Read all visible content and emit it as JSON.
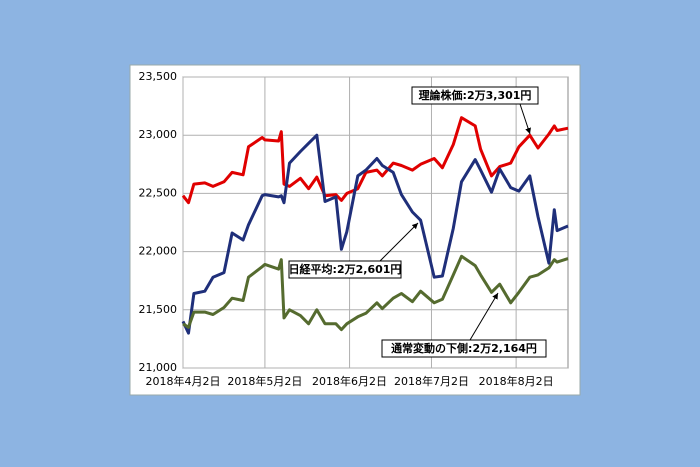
{
  "chart_data": {
    "type": "line",
    "x": [
      "2018-04-02",
      "2018-04-04",
      "2018-04-06",
      "2018-04-10",
      "2018-04-13",
      "2018-04-17",
      "2018-04-20",
      "2018-04-24",
      "2018-04-26",
      "2018-05-01",
      "2018-05-02",
      "2018-05-07",
      "2018-05-08",
      "2018-05-09",
      "2018-05-11",
      "2018-05-15",
      "2018-05-18",
      "2018-05-21",
      "2018-05-24",
      "2018-05-28",
      "2018-05-30",
      "2018-06-01",
      "2018-06-05",
      "2018-06-08",
      "2018-06-12",
      "2018-06-14",
      "2018-06-18",
      "2018-06-21",
      "2018-06-25",
      "2018-06-28",
      "2018-07-03",
      "2018-07-06",
      "2018-07-10",
      "2018-07-13",
      "2018-07-18",
      "2018-07-20",
      "2018-07-24",
      "2018-07-27",
      "2018-07-31",
      "2018-08-03",
      "2018-08-07",
      "2018-08-10",
      "2018-08-14",
      "2018-08-16",
      "2018-08-17",
      "2018-08-21"
    ],
    "series": [
      {
        "color": "#e00000",
        "values": [
          22480,
          22420,
          22580,
          22590,
          22560,
          22600,
          22680,
          22660,
          22900,
          22980,
          22960,
          22950,
          23030,
          22580,
          22560,
          22630,
          22540,
          22640,
          22480,
          22490,
          22440,
          22500,
          22540,
          22680,
          22700,
          22650,
          22760,
          22740,
          22700,
          22750,
          22800,
          22720,
          22920,
          23150,
          23080,
          22880,
          22650,
          22730,
          22760,
          22900,
          23000,
          22890,
          23010,
          23080,
          23040,
          23060
        ]
      },
      {
        "color": "#1f2f7a",
        "values": [
          21400,
          21300,
          21640,
          21660,
          21780,
          21820,
          22160,
          22100,
          22230,
          22480,
          22490,
          22470,
          22480,
          22420,
          22760,
          22860,
          22930,
          23000,
          22430,
          22470,
          22020,
          22170,
          22650,
          22700,
          22800,
          22740,
          22680,
          22490,
          22340,
          22270,
          21780,
          21790,
          22200,
          22600,
          22790,
          22700,
          22510,
          22710,
          22550,
          22520,
          22650,
          22300,
          21900,
          22360,
          22180,
          22220
        ]
      },
      {
        "color": "#556b2f",
        "values": [
          21380,
          21350,
          21480,
          21480,
          21460,
          21520,
          21600,
          21580,
          21780,
          21870,
          21890,
          21850,
          21930,
          21430,
          21500,
          21450,
          21380,
          21500,
          21380,
          21380,
          21330,
          21380,
          21440,
          21470,
          21560,
          21510,
          21600,
          21640,
          21570,
          21660,
          21560,
          21590,
          21800,
          21960,
          21880,
          21800,
          21650,
          21720,
          21560,
          21650,
          21780,
          21800,
          21860,
          21930,
          21910,
          21940
        ]
      }
    ],
    "xlim": [
      "2018-04-02",
      "2018-08-21"
    ],
    "xticks": [
      {
        "value": "2018-04-02",
        "label": "2018年4月2日"
      },
      {
        "value": "2018-05-02",
        "label": "2018年5月2日"
      },
      {
        "value": "2018-06-02",
        "label": "2018年6月2日"
      },
      {
        "value": "2018-07-02",
        "label": "2018年7月2日"
      },
      {
        "value": "2018-08-02",
        "label": "2018年8月2日"
      }
    ],
    "ylim": [
      21000,
      23500
    ],
    "yticks": [
      {
        "value": 21000,
        "label": "21,000"
      },
      {
        "value": 21500,
        "label": "21,500"
      },
      {
        "value": 22000,
        "label": "22,000"
      },
      {
        "value": 22500,
        "label": "22,500"
      },
      {
        "value": 23000,
        "label": "23,000"
      },
      {
        "value": 23500,
        "label": "23,500"
      }
    ],
    "grid": true,
    "annotations": [
      "理論株価:2万3,301円",
      "日経平均:2万2,601円",
      "通常変動の下側:2万2,164円"
    ]
  }
}
